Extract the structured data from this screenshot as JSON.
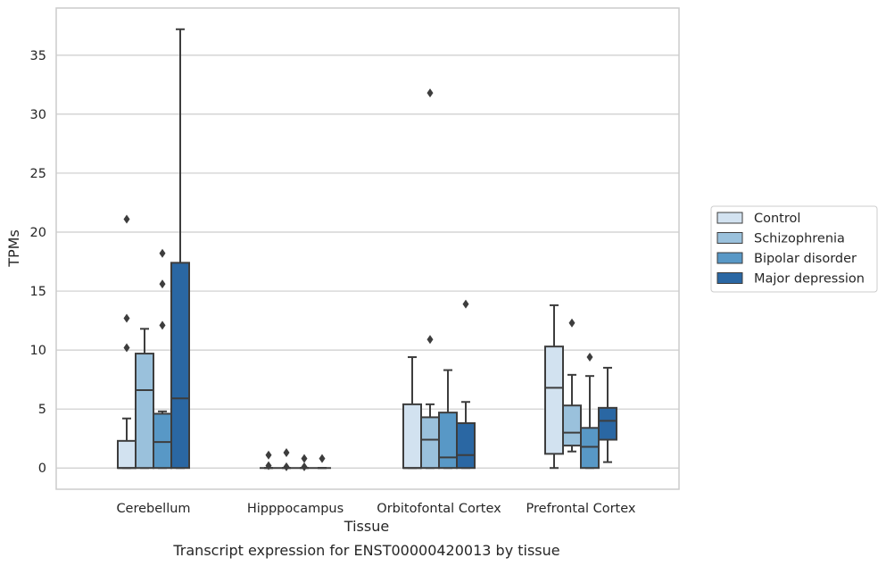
{
  "chart_data": {
    "type": "box",
    "xlabel": "Tissue",
    "ylabel": "TPMs",
    "caption": "Transcript expression for ENST00000420013 by tissue",
    "ylim": [
      -1.8,
      39.0
    ],
    "yticks": [
      0,
      5,
      10,
      15,
      20,
      25,
      30,
      35
    ],
    "grid": "horizontal",
    "legend_position": "right",
    "categories": [
      "Cerebellum",
      "Hipppocampus",
      "Orbitofontal Cortex",
      "Prefrontal Cortex"
    ],
    "series": [
      {
        "name": "Control",
        "color": "#d2e2f0",
        "boxes": [
          {
            "whislo": 0,
            "q1": 0,
            "med": 0,
            "q3": 2.3,
            "whishi": 4.2,
            "fliers": [
              10.2,
              12.7,
              21.1
            ]
          },
          {
            "whislo": 0,
            "q1": 0,
            "med": 0,
            "q3": 0,
            "whishi": 0,
            "fliers": [
              1.1,
              0.2
            ]
          },
          {
            "whislo": 0,
            "q1": 0,
            "med": 0,
            "q3": 5.4,
            "whishi": 9.4,
            "fliers": []
          },
          {
            "whislo": 0,
            "q1": 1.2,
            "med": 6.8,
            "q3": 10.3,
            "whishi": 13.8,
            "fliers": []
          }
        ]
      },
      {
        "name": "Schizophrenia",
        "color": "#9ac1dc",
        "boxes": [
          {
            "whislo": 0,
            "q1": 0,
            "med": 6.6,
            "q3": 9.7,
            "whishi": 11.8,
            "fliers": []
          },
          {
            "whislo": 0,
            "q1": 0,
            "med": 0,
            "q3": 0,
            "whishi": 0,
            "fliers": [
              1.3,
              0.1
            ]
          },
          {
            "whislo": 0,
            "q1": 0,
            "med": 2.4,
            "q3": 4.3,
            "whishi": 5.4,
            "fliers": [
              10.9,
              31.8
            ]
          },
          {
            "whislo": 1.4,
            "q1": 1.9,
            "med": 3.0,
            "q3": 5.3,
            "whishi": 7.9,
            "fliers": [
              12.3
            ]
          }
        ]
      },
      {
        "name": "Bipolar disorder",
        "color": "#5898c6",
        "boxes": [
          {
            "whislo": 0,
            "q1": 0,
            "med": 2.2,
            "q3": 4.6,
            "whishi": 4.8,
            "fliers": [
              12.1,
              15.6,
              18.2
            ]
          },
          {
            "whislo": 0,
            "q1": 0,
            "med": 0,
            "q3": 0,
            "whishi": 0,
            "fliers": [
              0.8,
              0.1
            ]
          },
          {
            "whislo": 0,
            "q1": 0,
            "med": 0.9,
            "q3": 4.7,
            "whishi": 8.3,
            "fliers": []
          },
          {
            "whislo": 0,
            "q1": 0,
            "med": 1.8,
            "q3": 3.4,
            "whishi": 7.8,
            "fliers": [
              9.4
            ]
          }
        ]
      },
      {
        "name": "Major depression",
        "color": "#2a67a3",
        "boxes": [
          {
            "whislo": 0,
            "q1": 0,
            "med": 5.9,
            "q3": 17.4,
            "whishi": 37.2,
            "fliers": []
          },
          {
            "whislo": 0,
            "q1": 0,
            "med": 0,
            "q3": 0,
            "whishi": 0,
            "fliers": [
              0.8
            ]
          },
          {
            "whislo": 0,
            "q1": 0,
            "med": 1.1,
            "q3": 3.8,
            "whishi": 5.6,
            "fliers": [
              13.9
            ]
          },
          {
            "whislo": 0.5,
            "q1": 2.4,
            "med": 4.0,
            "q3": 5.1,
            "whishi": 8.5,
            "fliers": []
          }
        ]
      }
    ]
  }
}
